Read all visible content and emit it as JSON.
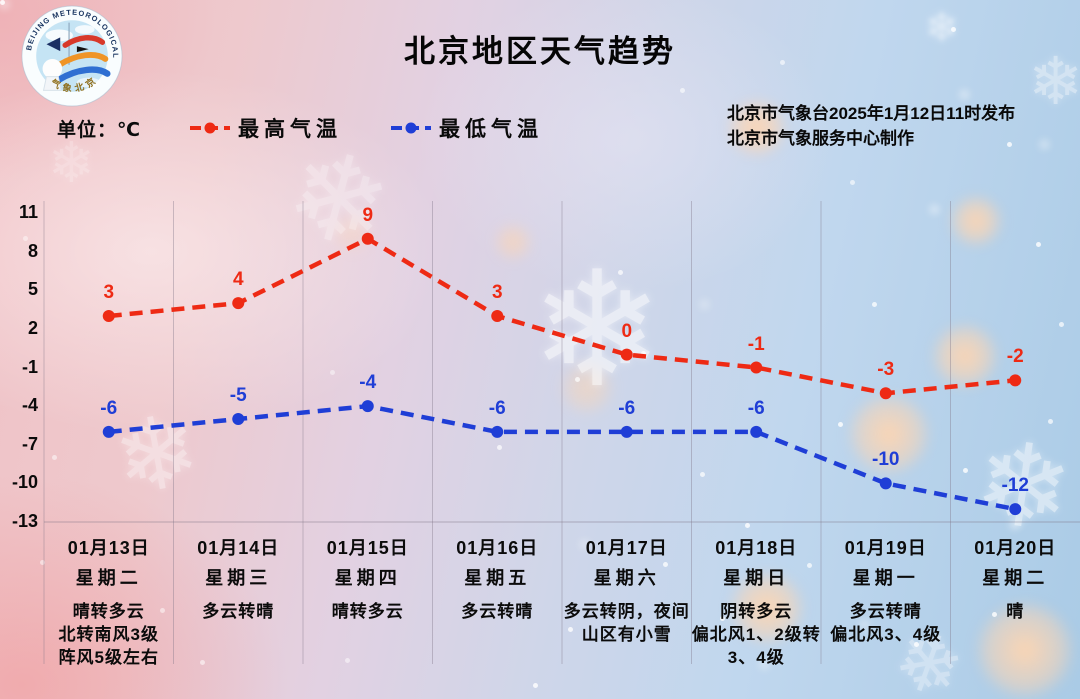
{
  "title": "北京地区天气趋势",
  "publisher": {
    "line1": "北京市气象台2025年1月12日11时发布",
    "line2": "北京市气象服务中心制作"
  },
  "unit_label": "单位：℃",
  "legend": {
    "max": {
      "label": "最高气温",
      "color": "#ee2a14"
    },
    "min": {
      "label": "最低气温",
      "color": "#1f3ed6"
    }
  },
  "logo": {
    "ring_text": "BEIJING METEOROLOGICAL SERVICE",
    "cn_text": "气象北京"
  },
  "icons": {
    "snowflake": "❄"
  },
  "colors": {
    "max_line": "#ee2a14",
    "min_line": "#1f3ed6",
    "grid": "rgba(125,115,135,0.38)",
    "text": "#0a0a0a"
  },
  "chart_data": {
    "type": "line",
    "title": "北京地区天气趋势",
    "xlabel": "",
    "ylabel": "℃",
    "ylim": [
      -13,
      11
    ],
    "yticks": [
      11,
      8,
      5,
      2,
      -1,
      -4,
      -7,
      -10,
      -13
    ],
    "grid": "vertical-columns",
    "legend_position": "top-left",
    "categories": [
      "01月13日",
      "01月14日",
      "01月15日",
      "01月16日",
      "01月17日",
      "01月18日",
      "01月19日",
      "01月20日"
    ],
    "weekdays": [
      "星期二",
      "星期三",
      "星期四",
      "星期五",
      "星期六",
      "星期日",
      "星期一",
      "星期二"
    ],
    "weather": [
      [
        "晴转多云",
        "北转南风3级",
        "阵风5级左右"
      ],
      [
        "多云转晴"
      ],
      [
        "晴转多云"
      ],
      [
        "多云转晴"
      ],
      [
        "多云转阴，夜间",
        "山区有小雪"
      ],
      [
        "阴转多云",
        "偏北风1、2级转",
        "3、4级"
      ],
      [
        "多云转晴",
        "偏北风3、4级"
      ],
      [
        "晴"
      ]
    ],
    "series": [
      {
        "name": "最高气温",
        "color": "#ee2a14",
        "values": [
          3,
          4,
          9,
          3,
          0,
          -1,
          -3,
          -2
        ]
      },
      {
        "name": "最低气温",
        "color": "#1f3ed6",
        "values": [
          -6,
          -5,
          -4,
          -6,
          -6,
          -6,
          -10,
          -12
        ]
      }
    ]
  }
}
